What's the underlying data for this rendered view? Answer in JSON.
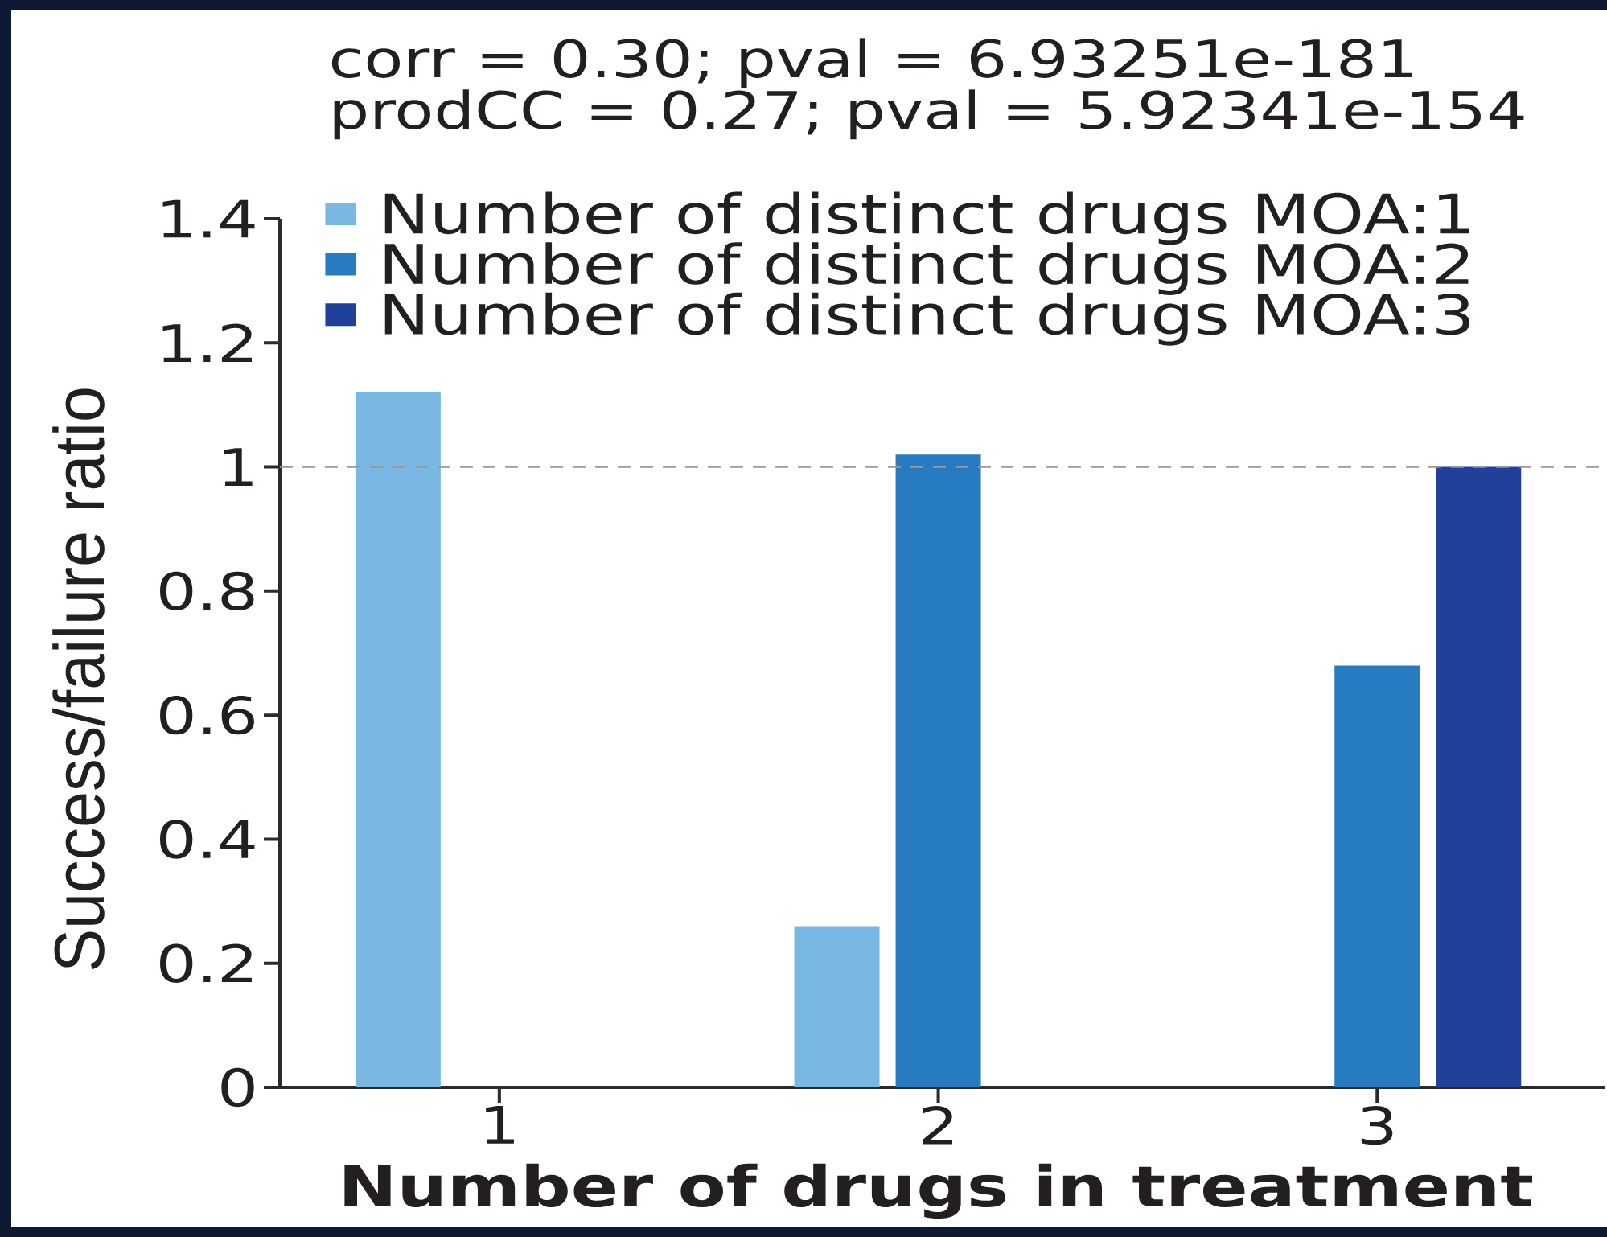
{
  "chart_data": {
    "type": "bar",
    "annotations": [
      "corr = 0.30; pval = 6.93251e-181",
      "prodCC = 0.27; pval = 5.92341e-154"
    ],
    "xlabel": "Number of drugs in treatment",
    "ylabel": "Success/failure ratio",
    "categories": [
      "1",
      "2",
      "3"
    ],
    "series": [
      {
        "name": "Number of distinct drugs MOA:1",
        "color": "#79b8e3",
        "values": [
          1.12,
          0.26,
          null
        ]
      },
      {
        "name": "Number of distinct drugs MOA:2",
        "color": "#277cc1",
        "values": [
          null,
          1.02,
          0.68
        ]
      },
      {
        "name": "Number of distinct drugs MOA:3",
        "color": "#21409a",
        "values": [
          null,
          null,
          1.0
        ]
      }
    ],
    "ylim": [
      0,
      1.4
    ],
    "yticks": [
      0,
      0.2,
      0.4,
      0.6,
      0.8,
      1,
      1.2,
      1.4
    ],
    "ref_lines": [
      {
        "axis": "y",
        "value": 1,
        "color": "#999999",
        "line_style": "dashed"
      }
    ],
    "legend": "top left"
  }
}
